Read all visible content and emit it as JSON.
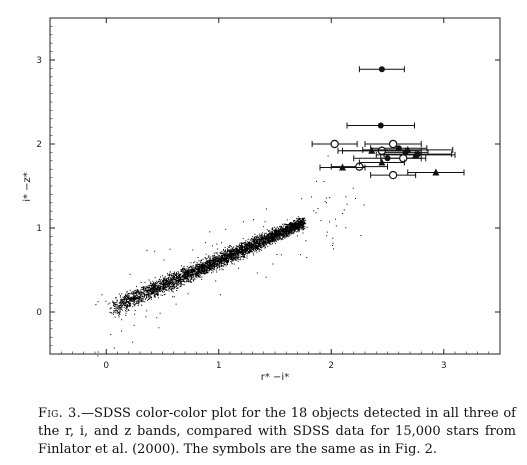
{
  "chart_data": {
    "type": "scatter",
    "title": "",
    "xlabel": "r* −i*",
    "ylabel": "i* −z*",
    "xlim": [
      -0.5,
      3.5
    ],
    "ylim": [
      -0.5,
      3.5
    ],
    "x_ticks": [
      "0",
      "1",
      "2",
      "3"
    ],
    "y_ticks": [
      "0",
      "1",
      "2",
      "3"
    ],
    "grid": false,
    "legend": "none",
    "series": [
      {
        "marker": "filled-circle",
        "points": [
          {
            "x": 2.45,
            "y": 2.89,
            "xerr": 0.2
          },
          {
            "x": 2.44,
            "y": 2.22,
            "xerr": 0.3
          },
          {
            "x": 2.6,
            "y": 1.95,
            "xerr": 0.25
          },
          {
            "x": 2.5,
            "y": 1.83,
            "xerr": 0.3
          },
          {
            "x": 2.77,
            "y": 1.88,
            "xerr": 0.3
          },
          {
            "x": 2.66,
            "y": 1.9,
            "xerr": 0.2
          }
        ]
      },
      {
        "marker": "open-circle",
        "points": [
          {
            "x": 2.03,
            "y": 2.0,
            "xerr": 0.2
          },
          {
            "x": 2.55,
            "y": 2.0,
            "xerr": 0.25
          },
          {
            "x": 2.45,
            "y": 1.92,
            "xerr": 0.35
          },
          {
            "x": 2.25,
            "y": 1.73,
            "xerr": 0.25
          },
          {
            "x": 2.55,
            "y": 1.63,
            "xerr": 0.2
          },
          {
            "x": 2.64,
            "y": 1.83,
            "xerr": 0.2
          }
        ]
      },
      {
        "marker": "filled-triangle",
        "points": [
          {
            "x": 2.1,
            "y": 1.72,
            "xerr": 0.2
          },
          {
            "x": 2.45,
            "y": 1.78,
            "xerr": 0.2
          },
          {
            "x": 2.75,
            "y": 1.87,
            "xerr": 0.35
          },
          {
            "x": 2.93,
            "y": 1.66,
            "xerr": 0.25
          },
          {
            "x": 2.68,
            "y": 1.93,
            "xerr": 0.4
          },
          {
            "x": 2.36,
            "y": 1.92,
            "xerr": 0.3
          }
        ]
      }
    ],
    "background_stars": {
      "count": 15000,
      "relation": "i-z ≈ 0.6 (r-i)",
      "x_range": [
        0.0,
        1.7
      ]
    }
  },
  "caption": {
    "fig_label": "Fig. 3.",
    "text": "—SDSS color-color plot for the 18 objects detected in all three of the r, i, and z bands, compared with SDSS data for 15,000 stars from Finlator et al. (2000). The symbols are the same as in Fig. 2."
  },
  "colors": {
    "ink": "#111111",
    "stars": "#000000"
  }
}
